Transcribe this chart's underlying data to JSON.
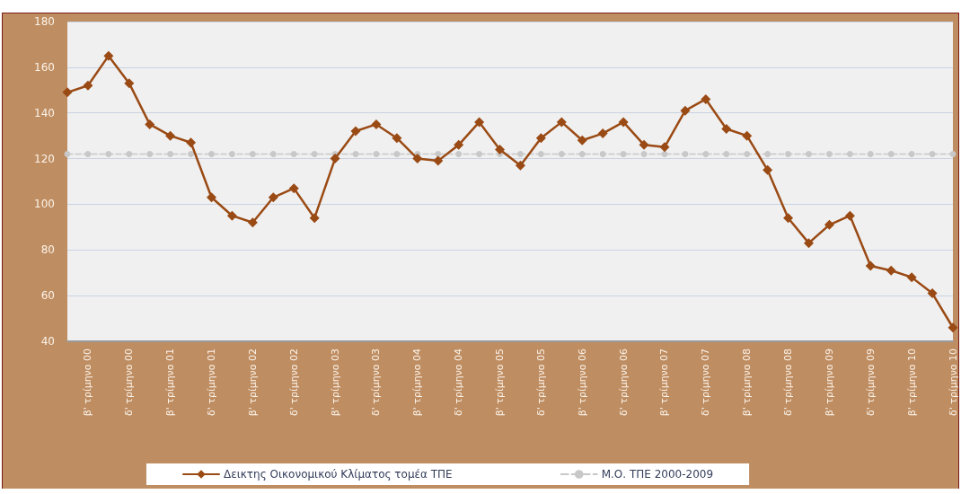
{
  "chart_data": {
    "type": "line",
    "categories": [
      null,
      "β' τρίμηνο 00",
      null,
      "δ' τρίμηνο 00",
      null,
      "β' τρίμηνο 01",
      null,
      "δ' τρίμηνο 01",
      null,
      "β' τρίμηνο 02",
      null,
      "δ' τρίμηνο 02",
      null,
      "β' τρίμηνο 03",
      null,
      "δ' τρίμηνο 03",
      null,
      "β' τρίμηνο 04",
      null,
      "δ' τρίμηνο 04",
      null,
      "β' τρίμηνο 05",
      null,
      "δ' τρίμηνο 05",
      null,
      "β' τρίμηνο 06",
      null,
      "δ' τρίμηνο 06",
      null,
      "β' τρίμηνο 07",
      null,
      "δ' τρίμηνο 07",
      null,
      "β' τρίμηνο 08",
      null,
      "δ' τρίμηνο 08",
      null,
      "β' τρίμηνο 09",
      null,
      "δ' τρίμηνο 09",
      null,
      "β' τρίμηνο 10",
      null,
      "δ' τρίμηνο 10"
    ],
    "series": [
      {
        "name": "Δεικτης Οικονομικού Κλίματος τομέα ΤΠΕ",
        "color": "#9a4a14",
        "marker": "diamond",
        "line_style": "solid",
        "values": [
          149,
          152,
          165,
          153,
          135,
          130,
          127,
          103,
          95,
          92,
          103,
          107,
          94,
          120,
          132,
          135,
          129,
          120,
          119,
          126,
          136,
          124,
          117,
          129,
          136,
          128,
          131,
          136,
          126,
          125,
          141,
          146,
          133,
          130,
          115,
          94,
          83,
          91,
          95,
          73,
          71,
          68,
          61,
          46
        ]
      },
      {
        "name": "Μ.Ο. ΤΠΕ 2000-2009",
        "color": "#c8c8c8",
        "marker": "circle",
        "line_style": "dashed",
        "values": [
          122,
          122,
          122,
          122,
          122,
          122,
          122,
          122,
          122,
          122,
          122,
          122,
          122,
          122,
          122,
          122,
          122,
          122,
          122,
          122,
          122,
          122,
          122,
          122,
          122,
          122,
          122,
          122,
          122,
          122,
          122,
          122,
          122,
          122,
          122,
          122,
          122,
          122,
          122,
          122,
          122,
          122,
          122,
          122
        ]
      }
    ],
    "ylim": [
      40,
      180
    ],
    "yticks": [
      40,
      60,
      80,
      100,
      120,
      140,
      160,
      180
    ],
    "grid": "y",
    "legend": "bottom"
  }
}
